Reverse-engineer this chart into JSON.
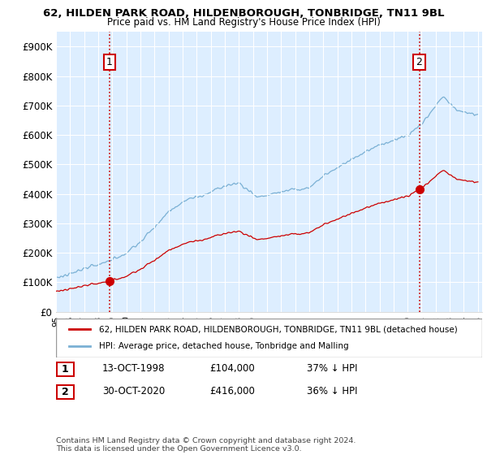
{
  "title": "62, HILDEN PARK ROAD, HILDENBOROUGH, TONBRIDGE, TN11 9BL",
  "subtitle": "Price paid vs. HM Land Registry's House Price Index (HPI)",
  "property_color": "#cc0000",
  "hpi_color": "#7ab0d4",
  "vline_color": "#cc0000",
  "bg_color": "#ddeeff",
  "ylim": [
    0,
    950000
  ],
  "yticks": [
    0,
    100000,
    200000,
    300000,
    400000,
    500000,
    600000,
    700000,
    800000,
    900000
  ],
  "ytick_labels": [
    "£0",
    "£100K",
    "£200K",
    "£300K",
    "£400K",
    "£500K",
    "£600K",
    "£700K",
    "£800K",
    "£900K"
  ],
  "sale1_year": 1998.79,
  "sale1_price": 104000,
  "sale1_label": "1",
  "sale2_year": 2020.83,
  "sale2_price": 416000,
  "sale2_label": "2",
  "legend_property": "62, HILDEN PARK ROAD, HILDENBOROUGH, TONBRIDGE, TN11 9BL (detached house)",
  "legend_hpi": "HPI: Average price, detached house, Tonbridge and Malling",
  "note1_box": "1",
  "note1_date": "13-OCT-1998",
  "note1_price": "£104,000",
  "note1_hpi": "37% ↓ HPI",
  "note2_box": "2",
  "note2_date": "30-OCT-2020",
  "note2_price": "£416,000",
  "note2_hpi": "36% ↓ HPI",
  "footer": "Contains HM Land Registry data © Crown copyright and database right 2024.\nThis data is licensed under the Open Government Licence v3.0."
}
